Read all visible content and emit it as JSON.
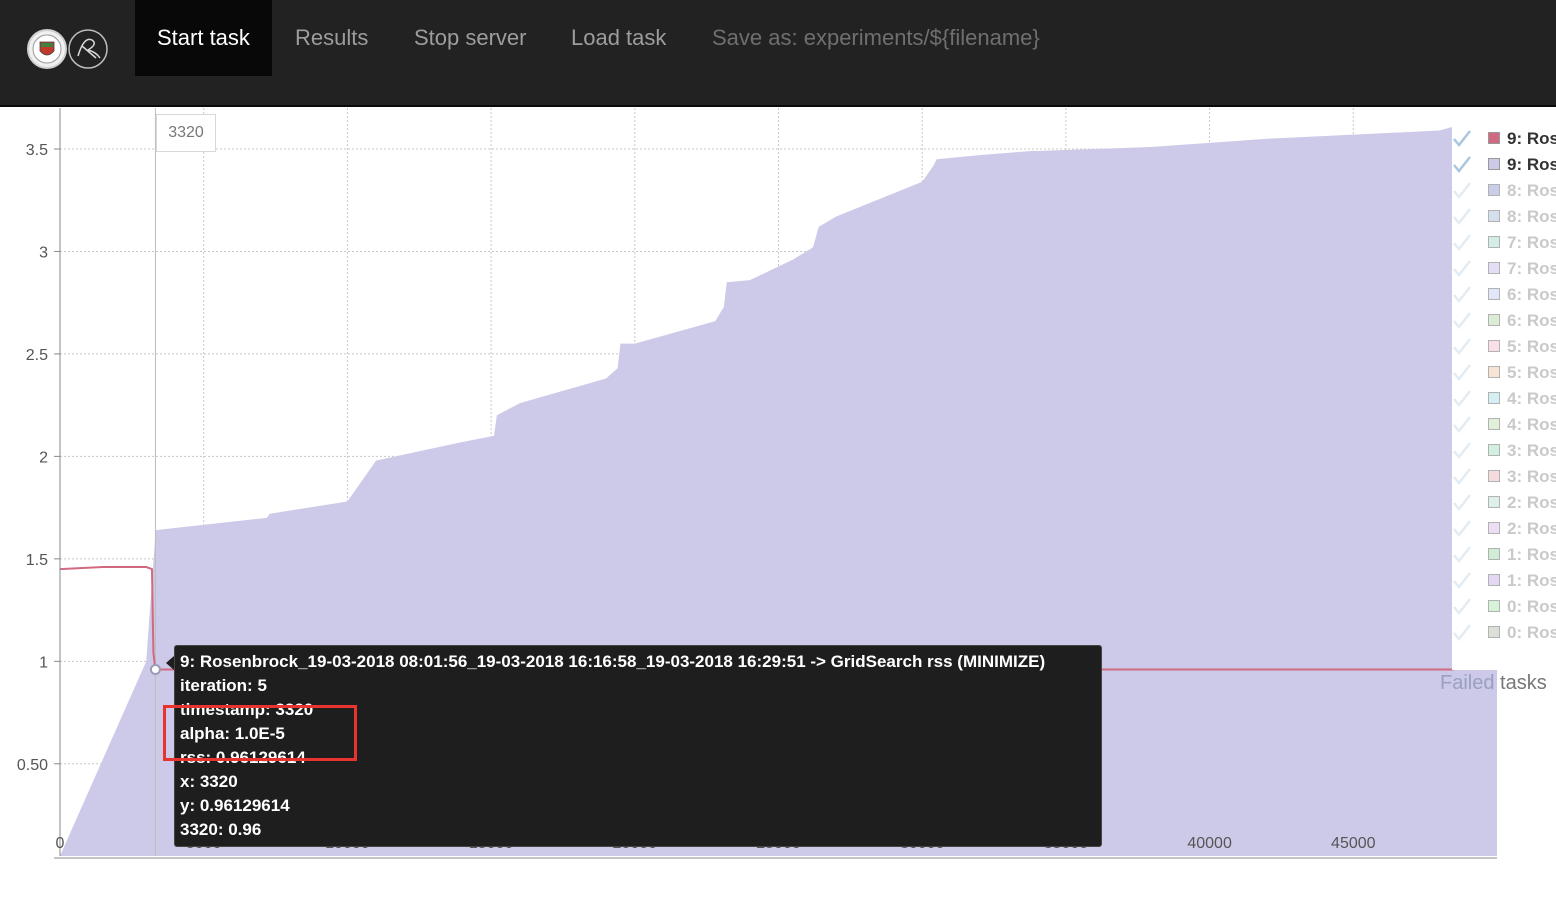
{
  "navbar": {
    "items": [
      {
        "label": "Start task",
        "active": true
      },
      {
        "label": "Results",
        "active": false
      },
      {
        "label": "Stop server",
        "active": false
      },
      {
        "label": "Load task",
        "active": false
      },
      {
        "label": "Save as: experiments/${filename}",
        "active": false
      }
    ],
    "logos": [
      "university-seal-logo",
      "signature-logo"
    ]
  },
  "chart_data": {
    "type": "area",
    "x_ticks": [
      0,
      5000,
      10000,
      15000,
      20000,
      25000,
      30000,
      35000,
      40000,
      45000
    ],
    "y_ticks": [
      0.5,
      1,
      1.5,
      2,
      2.5,
      3,
      3.5
    ],
    "y_tick_labels": [
      "0.50",
      "1",
      "1.5",
      "2",
      "2.5",
      "3",
      "3.5"
    ],
    "xlim": [
      0,
      50000
    ],
    "ylim": [
      0.05,
      3.7
    ],
    "grid": true,
    "crosshair_x": 3320,
    "crosshair_label": "3320",
    "series": [
      {
        "name": "9: Ros",
        "kind": "area",
        "color": "#cdc9e8",
        "x": [
          0,
          3000,
          3320,
          3320,
          7200,
          7300,
          10000,
          11000,
          14000,
          15100,
          15200,
          16000,
          19000,
          19400,
          19500,
          20000,
          22800,
          23100,
          23200,
          24000,
          25500,
          26200,
          26400,
          27000,
          30000,
          30400,
          30500,
          32000,
          33800,
          34000,
          38000,
          40000,
          42000,
          45000,
          48000,
          48500,
          50000
        ],
        "values": [
          0.05,
          1.0,
          1.62,
          1.64,
          1.7,
          1.72,
          1.78,
          1.98,
          2.07,
          2.1,
          2.2,
          2.26,
          2.38,
          2.43,
          2.55,
          2.55,
          2.66,
          2.73,
          2.85,
          2.86,
          2.96,
          3.02,
          3.12,
          3.17,
          3.34,
          3.42,
          3.45,
          3.47,
          3.49,
          3.49,
          3.51,
          3.53,
          3.55,
          3.57,
          3.59,
          3.61,
          3.61
        ]
      },
      {
        "name": "9: Ros",
        "kind": "line",
        "color": "#d16a80",
        "x": [
          0,
          1500,
          3000,
          3200,
          3250,
          3320,
          10000,
          20000,
          30000,
          40000,
          48500
        ],
        "values": [
          1.45,
          1.46,
          1.46,
          1.45,
          1.04,
          0.96,
          0.96,
          0.96,
          0.96,
          0.96,
          0.96
        ]
      }
    ],
    "legend": {
      "placement": "right",
      "items": [
        {
          "label": "9: Ros",
          "color": "#d16a80",
          "active": true
        },
        {
          "label": "9: Ros",
          "color": "#cdc9e8",
          "active": true
        },
        {
          "label": "8: Ros",
          "color": "#b9bde2",
          "active": false
        },
        {
          "label": "8: Ros",
          "color": "#c8d6e8",
          "active": false
        },
        {
          "label": "7: Ros",
          "color": "#c6e8e2",
          "active": false
        },
        {
          "label": "7: Ros",
          "color": "#dcd4f2",
          "active": false
        },
        {
          "label": "6: Ros",
          "color": "#d8e0f6",
          "active": false
        },
        {
          "label": "6: Ros",
          "color": "#cfe8c6",
          "active": false
        },
        {
          "label": "5: Ros",
          "color": "#f7d6de",
          "active": false
        },
        {
          "label": "5: Ros",
          "color": "#f6dcc6",
          "active": false
        },
        {
          "label": "4: Ros",
          "color": "#c8ecf2",
          "active": false
        },
        {
          "label": "4: Ros",
          "color": "#d6ecd0",
          "active": false
        },
        {
          "label": "3: Ros",
          "color": "#c2ecd6",
          "active": false
        },
        {
          "label": "3: Ros",
          "color": "#f2cfd2",
          "active": false
        },
        {
          "label": "2: Ros",
          "color": "#d2ece6",
          "active": false
        },
        {
          "label": "2: Ros",
          "color": "#e6d2f0",
          "active": false
        },
        {
          "label": "1: Ros",
          "color": "#bfe6c6",
          "active": false
        },
        {
          "label": "1: Ros",
          "color": "#dccaf0",
          "active": false
        },
        {
          "label": "0: Ros",
          "color": "#c6f0cc",
          "active": false
        },
        {
          "label": "0: Ros",
          "color": "#cfd6cc",
          "active": false
        }
      ]
    }
  },
  "failed_tasks": {
    "prefix": "Failed",
    "suffix": " tasks"
  },
  "tooltip": {
    "lines": [
      "9: Rosenbrock_19-03-2018 08:01:56_19-03-2018 16:16:58_19-03-2018 16:29:51 -> GridSearch rss (MINIMIZE)",
      "iteration: 5",
      "timestamp: 3320",
      "alpha: 1.0E-5",
      "rss: 0.96129614",
      "x: 3320",
      "y: 0.96129614",
      "3320: 0.96"
    ]
  },
  "colors": {
    "navbar_bg": "#222222",
    "area_fill": "#cdc9e8",
    "line": "#d16a80",
    "highlight": "#e8332e"
  }
}
